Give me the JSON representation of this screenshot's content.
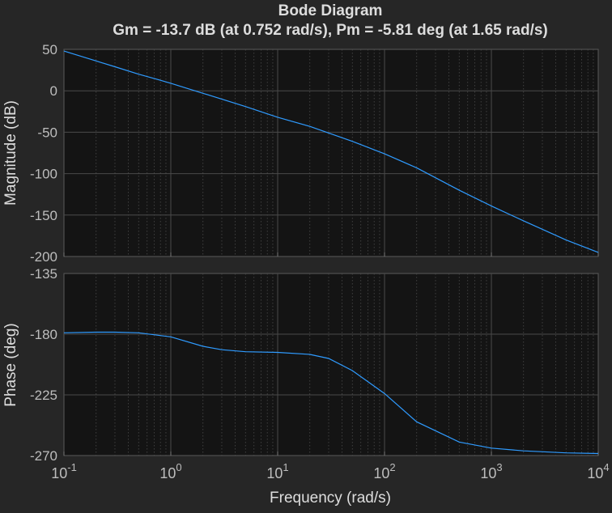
{
  "figure": {
    "title": "Bode Diagram",
    "subtitle": "Gm = -13.7 dB (at 0.752 rad/s),  Pm = -5.81 deg (at 1.65 rad/s)",
    "xlabel": "Frequency  (rad/s)"
  },
  "colors": {
    "figure_bg": "#262626",
    "axes_bg": "#141414",
    "grid": "#4a4a4a",
    "text": "#dddddd",
    "tick_text": "#bdbdbd",
    "line": "#2f9bff"
  },
  "chart_data": [
    {
      "type": "line",
      "name": "magnitude",
      "ylabel": "Magnitude (dB)",
      "xscale": "log",
      "xlim": [
        0.1,
        10000
      ],
      "ylim": [
        -200,
        50
      ],
      "yticks": [
        50,
        0,
        -50,
        -100,
        -150,
        -200
      ],
      "x_tick_labels": [],
      "grid": true,
      "series": [
        {
          "x": [
            0.1,
            0.2,
            0.3,
            0.5,
            0.752,
            1,
            2,
            5,
            10,
            20,
            50,
            100,
            200,
            500,
            1000,
            2000,
            5000,
            10000
          ],
          "values": [
            48,
            36,
            29,
            20,
            13.7,
            9,
            -3,
            -19,
            -32,
            -43,
            -61,
            -76,
            -93,
            -120,
            -139,
            -157,
            -180,
            -195
          ]
        }
      ]
    },
    {
      "type": "line",
      "name": "phase",
      "ylabel": "Phase (deg)",
      "xscale": "log",
      "xlim": [
        0.1,
        10000
      ],
      "ylim": [
        -270,
        -135
      ],
      "yticks": [
        -135,
        -180,
        -225,
        -270
      ],
      "x_tick_labels": [
        {
          "base": "10",
          "exp": "-1"
        },
        {
          "base": "10",
          "exp": "0"
        },
        {
          "base": "10",
          "exp": "1"
        },
        {
          "base": "10",
          "exp": "2"
        },
        {
          "base": "10",
          "exp": "3"
        },
        {
          "base": "10",
          "exp": "4"
        }
      ],
      "grid": true,
      "series": [
        {
          "x": [
            0.1,
            0.2,
            0.3,
            0.5,
            1,
            2,
            3,
            5,
            10,
            20,
            30,
            50,
            100,
            200,
            500,
            1000,
            2000,
            5000,
            10000
          ],
          "values": [
            -179,
            -178.5,
            -178.5,
            -179,
            -182,
            -189,
            -191.5,
            -193,
            -193.5,
            -195,
            -198,
            -207,
            -224,
            -245,
            -260,
            -264.5,
            -266.5,
            -268,
            -268.5
          ]
        }
      ]
    }
  ]
}
